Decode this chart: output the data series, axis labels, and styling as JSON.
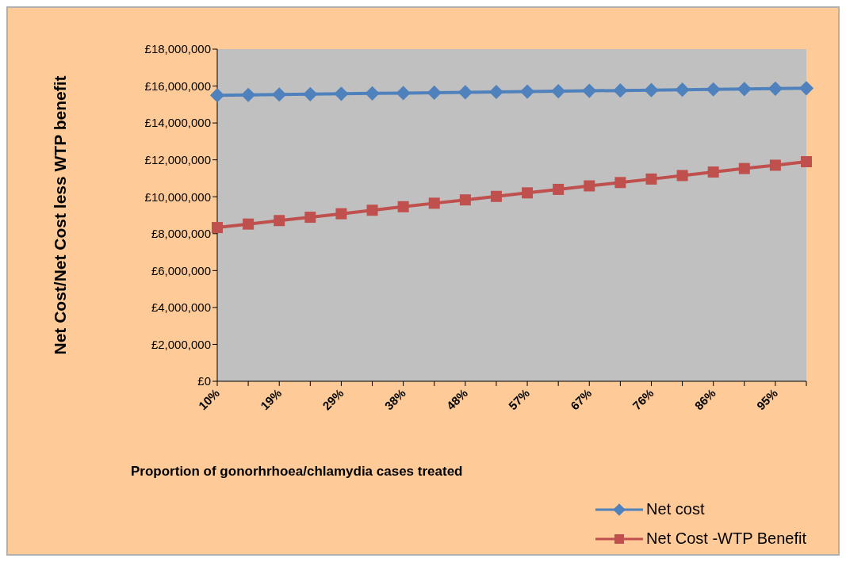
{
  "chart_data": {
    "type": "line",
    "xlabel": "Proportion of gonorhrhoea/chlamydia cases treated",
    "ylabel": "Net Cost/Net Cost less WTP benefit",
    "categories": [
      "10%",
      null,
      "19%",
      null,
      "29%",
      null,
      "38%",
      null,
      "48%",
      null,
      "57%",
      null,
      "67%",
      null,
      "76%",
      null,
      "86%",
      null,
      "95%",
      null
    ],
    "series": [
      {
        "name": "Net cost",
        "color": "#4f81bd",
        "marker": "diamond",
        "values": [
          15500000,
          15520000,
          15540000,
          15560000,
          15580000,
          15600000,
          15620000,
          15640000,
          15660000,
          15680000,
          15700000,
          15720000,
          15740000,
          15760000,
          15780000,
          15800000,
          15820000,
          15840000,
          15860000,
          15880000
        ]
      },
      {
        "name": "Net Cost -WTP Benefit",
        "color": "#c0504d",
        "marker": "square",
        "values": [
          8330000,
          8520000,
          8710000,
          8890000,
          9080000,
          9270000,
          9460000,
          9650000,
          9830000,
          10020000,
          10210000,
          10400000,
          10590000,
          10770000,
          10960000,
          11150000,
          11340000,
          11530000,
          11710000,
          11900000
        ]
      }
    ],
    "ylim": [
      0,
      18000000
    ],
    "yticks": [
      {
        "value": 0,
        "label": "£0"
      },
      {
        "value": 2000000,
        "label": "£2,000,000"
      },
      {
        "value": 4000000,
        "label": "£4,000,000"
      },
      {
        "value": 6000000,
        "label": "£6,000,000"
      },
      {
        "value": 8000000,
        "label": "£8,000,000"
      },
      {
        "value": 10000000,
        "label": "£10,000,000"
      },
      {
        "value": 12000000,
        "label": "£12,000,000"
      },
      {
        "value": 14000000,
        "label": "£14,000,000"
      },
      {
        "value": 16000000,
        "label": "£16,000,000"
      },
      {
        "value": 18000000,
        "label": "£18,000,000"
      }
    ],
    "grid": false,
    "legend": "bottom right"
  }
}
